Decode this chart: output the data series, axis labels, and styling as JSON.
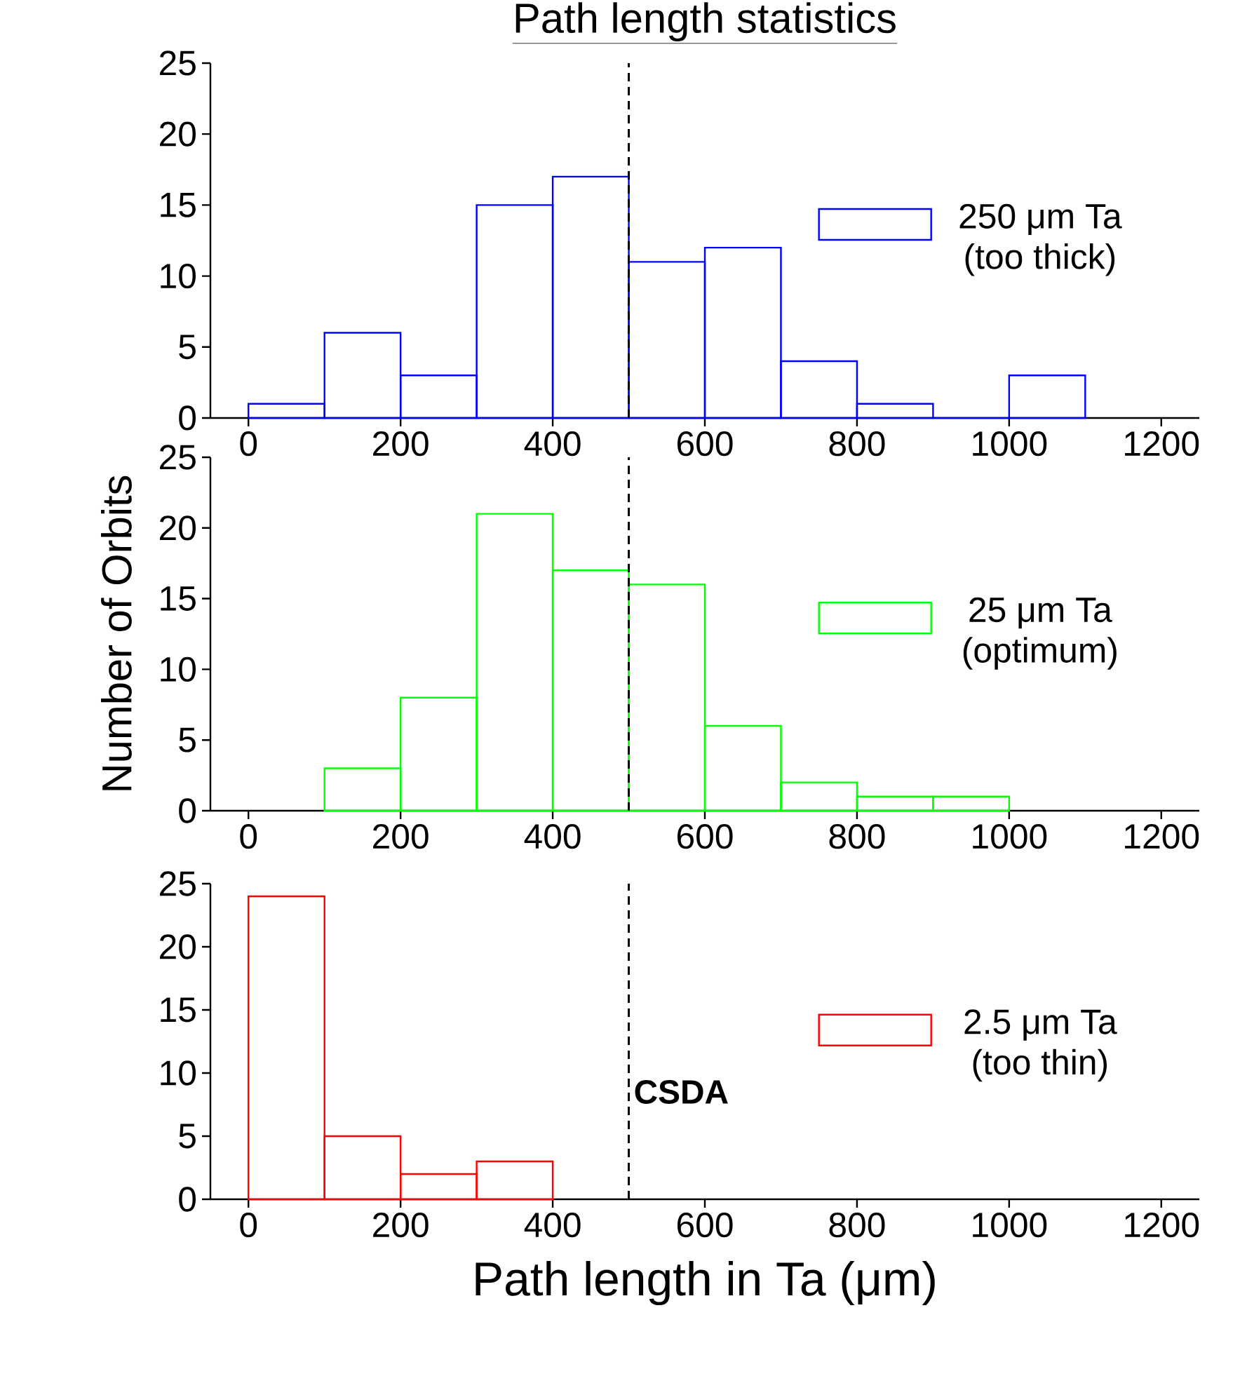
{
  "chart_data": [
    {
      "type": "histogram",
      "title": "Path length statistics",
      "bins": [
        0,
        100,
        200,
        300,
        400,
        500,
        600,
        700,
        800,
        900,
        1000,
        1100
      ],
      "series": [
        {
          "name": "250 μm Ta (too thick)",
          "color": "#0000ff",
          "values": [
            1,
            6,
            3,
            15,
            17,
            11,
            12,
            4,
            1,
            0,
            3
          ]
        }
      ],
      "xlim": [
        -50,
        1250
      ],
      "ylim": [
        0,
        25
      ],
      "xticks": [
        0,
        200,
        400,
        600,
        800,
        1000,
        1200
      ],
      "yticks": [
        0,
        5,
        10,
        15,
        20,
        25
      ],
      "legend": "right",
      "ref_lines": [
        {
          "axis": "x",
          "value": 500,
          "color": "#000000",
          "line_style": "dashed"
        }
      ]
    },
    {
      "type": "histogram",
      "ylabel": "Number of Orbits",
      "bins": [
        100,
        200,
        300,
        400,
        500,
        600,
        700,
        800,
        900,
        1000
      ],
      "series": [
        {
          "name": "25 μm Ta (optimum)",
          "color": "#00ff00",
          "values": [
            3,
            8,
            21,
            17,
            16,
            6,
            2,
            1,
            1
          ]
        }
      ],
      "xlim": [
        -50,
        1250
      ],
      "ylim": [
        0,
        25
      ],
      "xticks": [
        0,
        200,
        400,
        600,
        800,
        1000,
        1200
      ],
      "yticks": [
        0,
        5,
        10,
        15,
        20,
        25
      ],
      "legend": "right",
      "ref_lines": [
        {
          "axis": "x",
          "value": 500,
          "color": "#000000",
          "line_style": "dashed"
        }
      ]
    },
    {
      "type": "histogram",
      "xlabel": "Path length in Ta (μm)",
      "bins": [
        0,
        100,
        200,
        300,
        400
      ],
      "series": [
        {
          "name": "2.5 μm Ta (too thin)",
          "color": "#ff0000",
          "values": [
            24,
            5,
            2,
            3
          ]
        }
      ],
      "xlim": [
        -50,
        1250
      ],
      "ylim": [
        0,
        25
      ],
      "xticks": [
        0,
        200,
        400,
        600,
        800,
        1000,
        1200
      ],
      "yticks": [
        0,
        5,
        10,
        15,
        20,
        25
      ],
      "legend": "right",
      "ref_lines": [
        {
          "axis": "x",
          "value": 500,
          "label": "CSDA",
          "color": "#000000",
          "line_style": "dashed"
        }
      ]
    }
  ]
}
